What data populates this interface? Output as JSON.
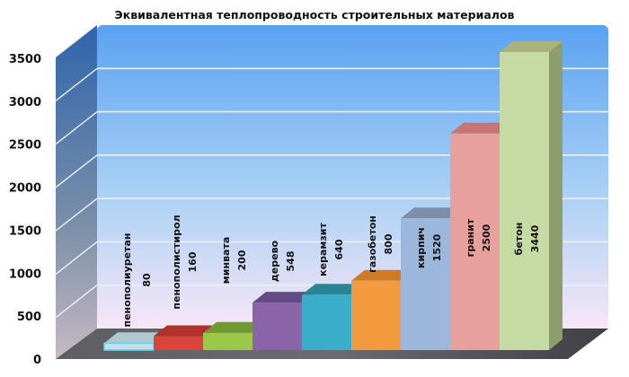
{
  "chart_data": {
    "type": "bar",
    "title": "Эквивалентная теплопроводность строительных материалов",
    "xlabel": "",
    "ylabel": "",
    "ylim": [
      0,
      3500
    ],
    "yticks": [
      0,
      500,
      1000,
      1500,
      2000,
      2500,
      3000,
      3500
    ],
    "grid": true,
    "legend": "none",
    "style": "3d-column",
    "categories": [
      "пенополиуретан",
      "пенополистирол",
      "минвата",
      "дерево",
      "керамзит",
      "газобетон",
      "кирпич",
      "гранит",
      "бетон"
    ],
    "values": [
      80,
      160,
      200,
      548,
      640,
      800,
      1520,
      2500,
      3440
    ],
    "data_labels": [
      "80",
      "160",
      "200",
      "548",
      "640",
      "800",
      "1520",
      "2500",
      "3440"
    ],
    "colors": [
      "#c9dde6",
      "#d9453b",
      "#9cc84a",
      "#8a63a8",
      "#3aaec8",
      "#f39a3e",
      "#9db6dc",
      "#e8a09c",
      "#c6dba3"
    ],
    "side_colors": [
      "#5fd6ef",
      "#a82b27",
      "#6e9a2e",
      "#5e3f7c",
      "#1f7f96",
      "#c46d1c",
      "#6f88ae",
      "#b86a68",
      "#8f9d6a"
    ],
    "top_colors": [
      "#b0c8d0",
      "#b0302b",
      "#6f9a30",
      "#664a85",
      "#2a8496",
      "#d07a24",
      "#7d8fa8",
      "#c87470",
      "#a9b27a"
    ],
    "label_colors": [
      "#1d5aa8",
      "#111111",
      "#111111",
      "#111111",
      "#111111",
      "#111111",
      "#111111",
      "#111111",
      "#111111"
    ]
  }
}
